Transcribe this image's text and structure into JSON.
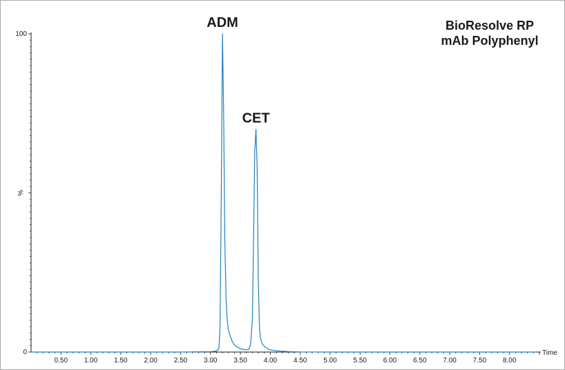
{
  "chart_data": {
    "type": "line",
    "title_lines": [
      "BioResolve RP",
      "mAb Polyphenyl"
    ],
    "xlabel": "Time",
    "ylabel": "%",
    "xlim": [
      0,
      8.5
    ],
    "ylim": [
      0,
      100
    ],
    "x_ticks": [
      "0.50",
      "1.00",
      "1.50",
      "2.00",
      "2.50",
      "3.00",
      "3.50",
      "4.00",
      "4.50",
      "5.00",
      "5.50",
      "6.00",
      "6.50",
      "7.00",
      "7.50",
      "8.00"
    ],
    "y_ticks": [
      "0",
      "100"
    ],
    "grid": false,
    "series": [
      {
        "color": "#1f7fc0",
        "x": [
          0.0,
          0.5,
          1.0,
          1.5,
          2.0,
          2.5,
          3.0,
          3.1,
          3.14,
          3.16,
          3.18,
          3.2,
          3.22,
          3.24,
          3.26,
          3.28,
          3.3,
          3.33,
          3.36,
          3.4,
          3.45,
          3.5,
          3.55,
          3.6,
          3.64,
          3.67,
          3.7,
          3.72,
          3.74,
          3.76,
          3.78,
          3.8,
          3.82,
          3.84,
          3.86,
          3.88,
          3.92,
          3.96,
          4.0,
          4.1,
          4.2,
          4.3,
          4.5,
          5.0,
          6.0,
          7.0,
          8.0,
          8.45
        ],
        "y": [
          0.0,
          0.0,
          0.0,
          0.0,
          0.0,
          0.0,
          0.1,
          0.3,
          1.0,
          8.0,
          50.0,
          100.0,
          75.0,
          35.0,
          17.0,
          10.0,
          7.0,
          5.0,
          3.5,
          2.2,
          1.5,
          1.1,
          0.8,
          0.7,
          0.8,
          2.5,
          10.0,
          35.0,
          63.0,
          70.0,
          58.0,
          22.0,
          7.0,
          4.0,
          2.8,
          2.2,
          1.5,
          1.0,
          0.7,
          0.4,
          0.25,
          0.15,
          0.05,
          0.0,
          0.0,
          0.0,
          0.0,
          0.0
        ]
      }
    ],
    "annotations": [
      {
        "text": "ADM",
        "x": 3.2,
        "y": 100
      },
      {
        "text": "CET",
        "x": 3.76,
        "y": 70
      }
    ]
  }
}
